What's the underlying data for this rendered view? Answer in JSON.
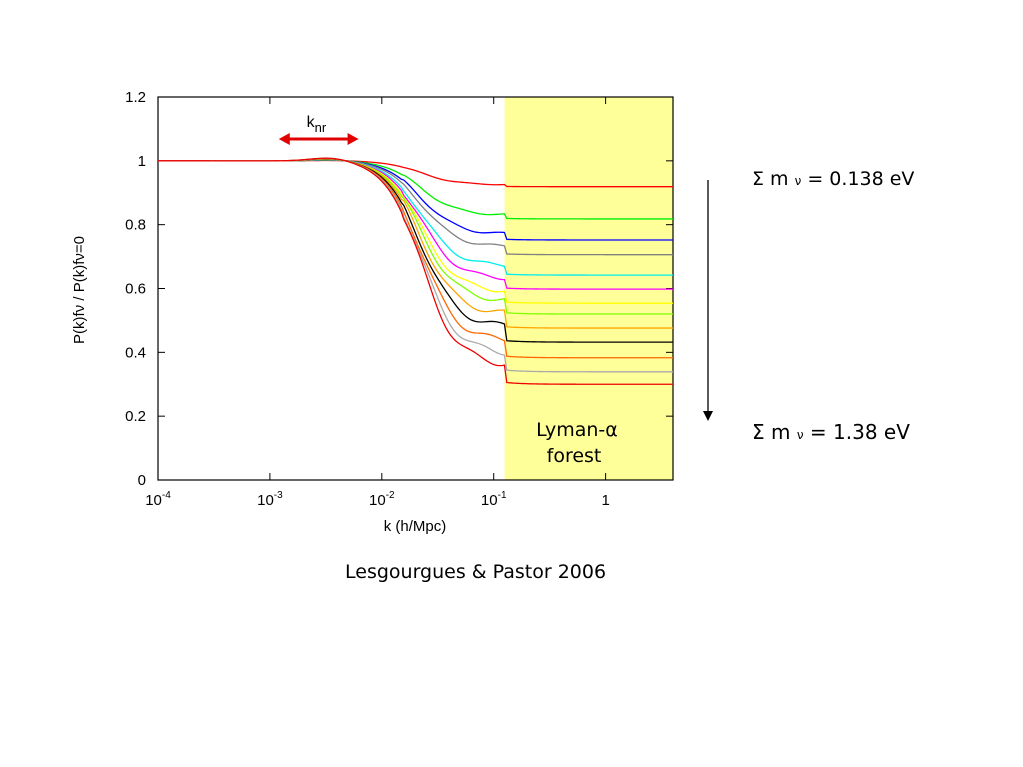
{
  "chart_data": {
    "type": "line",
    "xscale": "log",
    "xlim": [
      0.0001,
      4
    ],
    "ylim": [
      0,
      1.2
    ],
    "xlabel": "k (h/Mpc)",
    "ylabel": "P(k)fν / P(k)fν=0",
    "x_ticks": [
      {
        "value": 0.0001,
        "base": "10",
        "exp": "-4"
      },
      {
        "value": 0.001,
        "base": "10",
        "exp": "-3"
      },
      {
        "value": 0.01,
        "base": "10",
        "exp": "-2"
      },
      {
        "value": 0.1,
        "base": "10",
        "exp": "-1"
      },
      {
        "value": 1,
        "base": "1",
        "exp": ""
      }
    ],
    "y_ticks": [
      {
        "value": 0,
        "label": "0"
      },
      {
        "value": 0.2,
        "label": "0.2"
      },
      {
        "value": 0.4,
        "label": "0.4"
      },
      {
        "value": 0.6,
        "label": "0.6"
      },
      {
        "value": 0.8,
        "label": "0.8"
      },
      {
        "value": 1,
        "label": "1"
      },
      {
        "value": 1.2,
        "label": "1.2"
      }
    ],
    "shaded_region": {
      "x_start": 0.125,
      "x_end": 4,
      "color": "#ffff99",
      "label_line1": "Lyman-α",
      "label_line2": "forest"
    },
    "annotation": {
      "label": "k",
      "label_sub": "nr",
      "x_start": 0.0012,
      "x_end": 0.0062,
      "color": "#e00000"
    },
    "series": [
      {
        "color": "#ff0000",
        "suppression": 0.075,
        "step": 0.006
      },
      {
        "color": "#00ee00",
        "suppression": 0.17,
        "step": 0.012
      },
      {
        "color": "#0000ff",
        "suppression": 0.23,
        "step": 0.018
      },
      {
        "color": "#808080",
        "suppression": 0.27,
        "step": 0.024
      },
      {
        "color": "#00eeee",
        "suppression": 0.33,
        "step": 0.028
      },
      {
        "color": "#ff00ff",
        "suppression": 0.37,
        "step": 0.032
      },
      {
        "color": "#ffff00",
        "suppression": 0.41,
        "step": 0.036
      },
      {
        "color": "#7fff00",
        "suppression": 0.44,
        "step": 0.04
      },
      {
        "color": "#ffa500",
        "suppression": 0.48,
        "step": 0.044
      },
      {
        "color": "#000000",
        "suppression": 0.52,
        "step": 0.048
      },
      {
        "color": "#ff6600",
        "suppression": 0.565,
        "step": 0.052
      },
      {
        "color": "#aaaaaa",
        "suppression": 0.605,
        "step": 0.056
      },
      {
        "color": "#ee0000",
        "suppression": 0.64,
        "step": 0.06
      }
    ]
  },
  "annotations": {
    "top_sum": "Σ m",
    "top_nu": "ν",
    "top_value": " = 0.138 eV",
    "bottom_sum": "Σ m",
    "bottom_nu": "ν",
    "bottom_value": " = 1.38 eV",
    "arrow_color": "#000000"
  },
  "caption": "Lesgourgues & Pastor 2006"
}
